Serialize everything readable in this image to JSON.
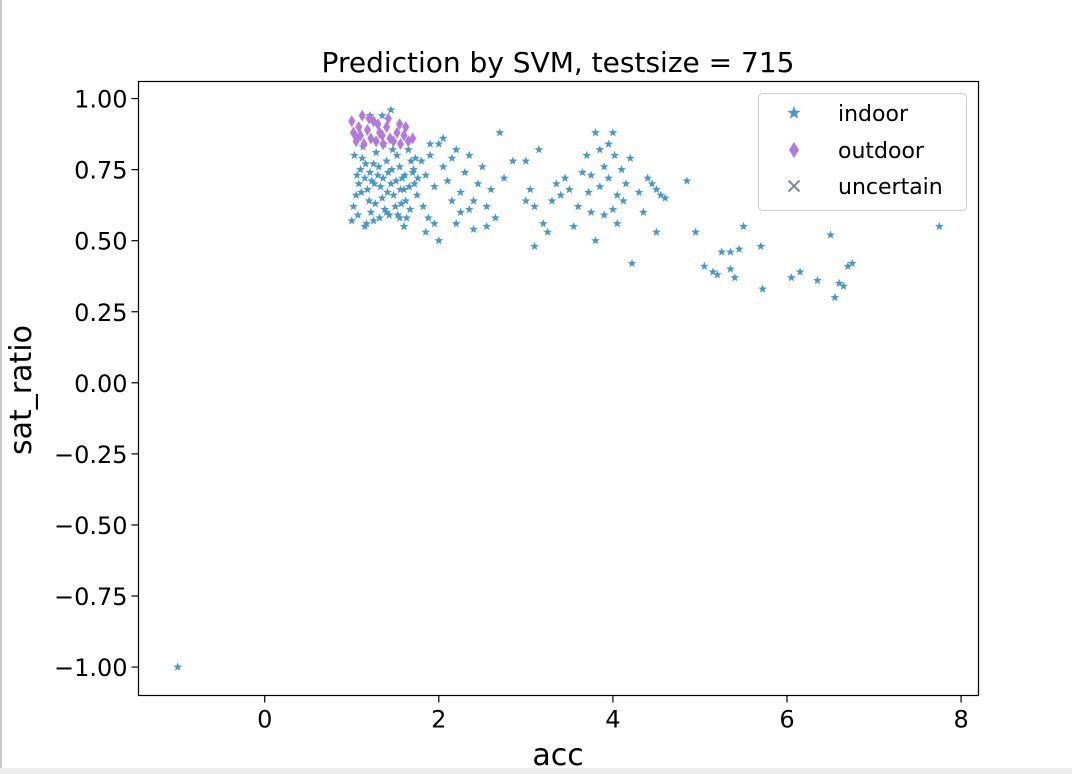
{
  "chart_data": {
    "type": "scatter",
    "title": "Prediction by SVM, testsize = 715",
    "xlabel": "acc",
    "ylabel": "sat_ratio",
    "xlim": [
      -1.45,
      8.2
    ],
    "ylim": [
      -1.1,
      1.06
    ],
    "xticks": [
      0,
      2,
      4,
      6,
      8
    ],
    "xtick_labels": [
      "0",
      "2",
      "4",
      "6",
      "8"
    ],
    "yticks": [
      1.0,
      0.75,
      0.5,
      0.25,
      0.0,
      -0.25,
      -0.5,
      -0.75,
      -1.0
    ],
    "ytick_labels": [
      "1.00",
      "0.75",
      "0.50",
      "0.25",
      "0.00",
      "−0.25",
      "−0.50",
      "−0.75",
      "−1.00"
    ],
    "grid": false,
    "legend_position": "top-right",
    "series": [
      {
        "name": "indoor",
        "marker": "star",
        "color": "#4a98c9",
        "points": [
          [
            -1.0,
            -1.0
          ],
          [
            1.0,
            0.57
          ],
          [
            1.02,
            0.62
          ],
          [
            1.05,
            0.66
          ],
          [
            1.08,
            0.7
          ],
          [
            1.1,
            0.75
          ],
          [
            1.12,
            0.79
          ],
          [
            1.15,
            0.72
          ],
          [
            1.18,
            0.68
          ],
          [
            1.2,
            0.64
          ],
          [
            1.22,
            0.6
          ],
          [
            1.25,
            0.77
          ],
          [
            1.28,
            0.81
          ],
          [
            1.3,
            0.73
          ],
          [
            1.33,
            0.69
          ],
          [
            1.35,
            0.65
          ],
          [
            1.38,
            0.61
          ],
          [
            1.4,
            0.78
          ],
          [
            1.42,
            0.74
          ],
          [
            1.45,
            0.7
          ],
          [
            1.48,
            0.66
          ],
          [
            1.5,
            0.62
          ],
          [
            1.52,
            0.8
          ],
          [
            1.55,
            0.76
          ],
          [
            1.58,
            0.72
          ],
          [
            1.6,
            0.68
          ],
          [
            1.62,
            0.64
          ],
          [
            1.65,
            0.82
          ],
          [
            1.68,
            0.78
          ],
          [
            1.7,
            0.74
          ],
          [
            1.72,
            0.7
          ],
          [
            1.75,
            0.66
          ],
          [
            1.03,
            0.8
          ],
          [
            1.07,
            0.59
          ],
          [
            1.13,
            0.83
          ],
          [
            1.17,
            0.56
          ],
          [
            1.23,
            0.71
          ],
          [
            1.27,
            0.63
          ],
          [
            1.32,
            0.58
          ],
          [
            1.37,
            0.84
          ],
          [
            1.43,
            0.59
          ],
          [
            1.47,
            0.82
          ],
          [
            1.53,
            0.59
          ],
          [
            1.57,
            0.63
          ],
          [
            1.63,
            0.58
          ],
          [
            1.67,
            0.61
          ],
          [
            1.73,
            0.79
          ],
          [
            1.06,
            0.73
          ],
          [
            1.11,
            0.67
          ],
          [
            1.16,
            0.77
          ],
          [
            1.21,
            0.74
          ],
          [
            1.26,
            0.7
          ],
          [
            1.31,
            0.76
          ],
          [
            1.36,
            0.72
          ],
          [
            1.41,
            0.67
          ],
          [
            1.46,
            0.75
          ],
          [
            1.51,
            0.71
          ],
          [
            1.56,
            0.68
          ],
          [
            1.61,
            0.73
          ],
          [
            1.66,
            0.69
          ],
          [
            1.71,
            0.75
          ],
          [
            1.76,
            0.72
          ],
          [
            1.15,
            0.55
          ],
          [
            1.21,
            0.94
          ],
          [
            1.35,
            0.94
          ],
          [
            1.45,
            0.96
          ],
          [
            1.25,
            0.57
          ],
          [
            1.55,
            0.58
          ],
          [
            1.6,
            0.55
          ],
          [
            1.4,
            0.6
          ],
          [
            1.8,
            0.78
          ],
          [
            1.85,
            0.73
          ],
          [
            1.9,
            0.8
          ],
          [
            1.95,
            0.69
          ],
          [
            2.0,
            0.84
          ],
          [
            2.05,
            0.76
          ],
          [
            2.1,
            0.71
          ],
          [
            2.15,
            0.79
          ],
          [
            2.2,
            0.82
          ],
          [
            2.25,
            0.67
          ],
          [
            2.3,
            0.74
          ],
          [
            2.35,
            0.8
          ],
          [
            2.4,
            0.64
          ],
          [
            2.45,
            0.7
          ],
          [
            2.5,
            0.76
          ],
          [
            2.55,
            0.62
          ],
          [
            2.6,
            0.68
          ],
          [
            2.7,
            0.88
          ],
          [
            2.75,
            0.72
          ],
          [
            2.85,
            0.78
          ],
          [
            2.65,
            0.58
          ],
          [
            2.55,
            0.55
          ],
          [
            2.4,
            0.54
          ],
          [
            2.2,
            0.56
          ],
          [
            2.0,
            0.5
          ],
          [
            1.95,
            0.56
          ],
          [
            1.85,
            0.53
          ],
          [
            1.9,
            0.84
          ],
          [
            2.05,
            0.86
          ],
          [
            2.15,
            0.64
          ],
          [
            2.35,
            0.61
          ],
          [
            2.25,
            0.6
          ],
          [
            1.82,
            0.62
          ],
          [
            1.88,
            0.58
          ],
          [
            3.0,
            0.78
          ],
          [
            3.05,
            0.68
          ],
          [
            3.1,
            0.62
          ],
          [
            3.15,
            0.82
          ],
          [
            3.2,
            0.56
          ],
          [
            3.25,
            0.53
          ],
          [
            3.3,
            0.64
          ],
          [
            3.35,
            0.7
          ],
          [
            3.4,
            0.66
          ],
          [
            3.45,
            0.72
          ],
          [
            3.5,
            0.68
          ],
          [
            3.55,
            0.55
          ],
          [
            3.6,
            0.62
          ],
          [
            3.65,
            0.74
          ],
          [
            3.1,
            0.48
          ],
          [
            3.0,
            0.64
          ],
          [
            3.7,
            0.8
          ],
          [
            3.75,
            0.73
          ],
          [
            3.8,
            0.88
          ],
          [
            3.85,
            0.69
          ],
          [
            3.9,
            0.76
          ],
          [
            3.95,
            0.84
          ],
          [
            4.0,
            0.88
          ],
          [
            4.05,
            0.66
          ],
          [
            4.1,
            0.75
          ],
          [
            4.15,
            0.7
          ],
          [
            4.2,
            0.79
          ],
          [
            3.75,
            0.6
          ],
          [
            3.8,
            0.5
          ],
          [
            3.9,
            0.59
          ],
          [
            4.0,
            0.61
          ],
          [
            4.05,
            0.56
          ],
          [
            3.85,
            0.82
          ],
          [
            3.95,
            0.72
          ],
          [
            4.02,
            0.8
          ],
          [
            4.12,
            0.64
          ],
          [
            3.72,
            0.67
          ],
          [
            4.22,
            0.42
          ],
          [
            4.3,
            0.67
          ],
          [
            4.4,
            0.72
          ],
          [
            4.45,
            0.7
          ],
          [
            4.5,
            0.68
          ],
          [
            4.55,
            0.66
          ],
          [
            4.5,
            0.53
          ],
          [
            4.85,
            0.71
          ],
          [
            4.35,
            0.6
          ],
          [
            4.6,
            0.65
          ],
          [
            4.95,
            0.53
          ],
          [
            5.05,
            0.41
          ],
          [
            5.15,
            0.39
          ],
          [
            5.2,
            0.38
          ],
          [
            5.25,
            0.46
          ],
          [
            5.35,
            0.4
          ],
          [
            5.4,
            0.37
          ],
          [
            5.45,
            0.47
          ],
          [
            5.5,
            0.55
          ],
          [
            5.35,
            0.46
          ],
          [
            5.7,
            0.48
          ],
          [
            5.72,
            0.33
          ],
          [
            6.05,
            0.37
          ],
          [
            6.15,
            0.39
          ],
          [
            6.35,
            0.36
          ],
          [
            6.5,
            0.52
          ],
          [
            6.55,
            0.3
          ],
          [
            6.6,
            0.35
          ],
          [
            6.65,
            0.34
          ],
          [
            6.7,
            0.41
          ],
          [
            6.75,
            0.42
          ],
          [
            7.75,
            0.55
          ]
        ]
      },
      {
        "name": "outdoor",
        "marker": "diamond",
        "color": "#b27ae0",
        "points": [
          [
            1.0,
            0.92
          ],
          [
            1.02,
            0.88
          ],
          [
            1.05,
            0.85
          ],
          [
            1.08,
            0.9
          ],
          [
            1.1,
            0.87
          ],
          [
            1.14,
            0.84
          ],
          [
            1.18,
            0.89
          ],
          [
            1.22,
            0.86
          ],
          [
            1.25,
            0.92
          ],
          [
            1.28,
            0.85
          ],
          [
            1.32,
            0.88
          ],
          [
            1.36,
            0.84
          ],
          [
            1.4,
            0.9
          ],
          [
            1.44,
            0.86
          ],
          [
            1.48,
            0.85
          ],
          [
            1.52,
            0.88
          ],
          [
            1.56,
            0.84
          ],
          [
            1.6,
            0.87
          ],
          [
            1.65,
            0.85
          ],
          [
            1.7,
            0.86
          ],
          [
            1.2,
            0.93
          ],
          [
            1.3,
            0.91
          ],
          [
            1.42,
            0.93
          ],
          [
            1.55,
            0.91
          ],
          [
            1.12,
            0.94
          ],
          [
            1.62,
            0.9
          ],
          [
            1.35,
            0.87
          ],
          [
            1.06,
            0.86
          ]
        ]
      },
      {
        "name": "uncertain",
        "marker": "x",
        "color": "#7b8899",
        "points": []
      }
    ]
  }
}
